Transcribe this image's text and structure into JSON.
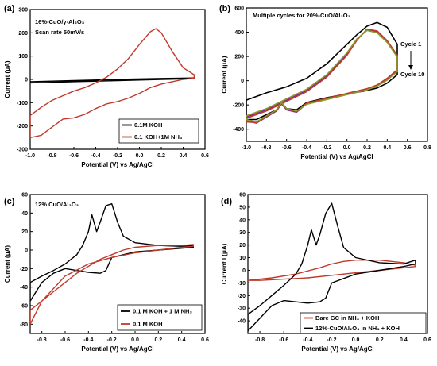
{
  "chart_data": [
    {
      "type": "line",
      "panel_label": "(a)",
      "annotations": [
        "16%-CuO/γ-Al₂O₃",
        "Scan rate 50mV/s"
      ],
      "xlabel": "Potential (V) vs Ag/AgCl",
      "ylabel": "Current (μA)",
      "xlim": [
        -1.0,
        0.6
      ],
      "ylim": [
        -300,
        300
      ],
      "xticks": [
        "-1.0",
        "-0.8",
        "-0.6",
        "-0.4",
        "-0.2",
        "0.0",
        "0.2",
        "0.4",
        "0.6"
      ],
      "yticks": [
        "-300",
        "-200",
        "-100",
        "0",
        "100",
        "200",
        "300"
      ],
      "legend_position": "bottom-right",
      "series": [
        {
          "name": "0.1M KOH",
          "color": "#000000",
          "x": [
            -1.0,
            -0.6,
            -0.2,
            0.2,
            0.5,
            0.5,
            0.2,
            -0.2,
            -0.6,
            -1.0
          ],
          "y": [
            -15,
            -10,
            -5,
            0,
            3,
            6,
            4,
            0,
            -5,
            -10
          ]
        },
        {
          "name": "0.1 KOH+1M NH₃",
          "color": "#c0392b",
          "x": [
            -1.0,
            -0.9,
            -0.8,
            -0.7,
            -0.6,
            -0.5,
            -0.4,
            -0.3,
            -0.2,
            -0.1,
            0.0,
            0.1,
            0.15,
            0.2,
            0.3,
            0.4,
            0.5,
            0.5,
            0.4,
            0.3,
            0.2,
            0.1,
            0.0,
            -0.1,
            -0.2,
            -0.3,
            -0.4,
            -0.5,
            -0.6,
            -0.7,
            -0.8,
            -0.9,
            -1.0
          ],
          "y": [
            -155,
            -120,
            -90,
            -70,
            -50,
            -35,
            -15,
            10,
            45,
            90,
            150,
            205,
            218,
            200,
            120,
            50,
            20,
            5,
            0,
            -10,
            -20,
            -35,
            -60,
            -80,
            -95,
            -105,
            -125,
            -150,
            -165,
            -170,
            -205,
            -240,
            -250
          ]
        }
      ]
    },
    {
      "type": "line",
      "panel_label": "(b)",
      "annotations": [
        "Multiple cycles for 20%-CuO/Al₂O₃",
        "Cycle 1",
        "Cycle 10"
      ],
      "xlabel": "Potential (V) vs Ag/AgCl",
      "ylabel": "Current (μA)",
      "xlim": [
        -1.0,
        0.8
      ],
      "ylim": [
        -500,
        600
      ],
      "xticks": [
        "-1.0",
        "-0.8",
        "-0.6",
        "-0.4",
        "-0.2",
        "0.0",
        "0.2",
        "0.4",
        "0.6",
        "0.8"
      ],
      "yticks": [
        "-400",
        "-200",
        "0",
        "200",
        "400",
        "600"
      ],
      "series": [
        {
          "name": "",
          "color": "#000000",
          "x": [
            -1.0,
            -0.8,
            -0.6,
            -0.4,
            -0.2,
            0.0,
            0.1,
            0.2,
            0.3,
            0.4,
            0.5,
            0.5,
            0.4,
            0.3,
            0.2,
            0.0,
            -0.2,
            -0.4,
            -0.5,
            -0.6,
            -0.65,
            -0.7,
            -0.8,
            -0.9,
            -1.0
          ],
          "y": [
            -160,
            -100,
            -50,
            20,
            140,
            300,
            380,
            450,
            480,
            440,
            300,
            50,
            -20,
            -60,
            -80,
            -110,
            -140,
            -180,
            -240,
            -230,
            -180,
            -240,
            -280,
            -320,
            -320
          ]
        },
        {
          "name": "",
          "color": "#7b2d8e",
          "x": [
            -1.0,
            -0.8,
            -0.6,
            -0.4,
            -0.2,
            0.0,
            0.1,
            0.2,
            0.3,
            0.4,
            0.5,
            0.5,
            0.4,
            0.3,
            0.2,
            0.0,
            -0.2,
            -0.4,
            -0.5,
            -0.6,
            -0.65,
            -0.7,
            -0.8,
            -0.9,
            -1.0
          ],
          "y": [
            -300,
            -240,
            -160,
            -80,
            40,
            220,
            340,
            420,
            400,
            320,
            200,
            80,
            10,
            -40,
            -70,
            -110,
            -150,
            -190,
            -260,
            -240,
            -190,
            -250,
            -300,
            -350,
            -330
          ]
        },
        {
          "name": "",
          "color": "#c0392b",
          "x": [
            -1.0,
            -0.8,
            -0.6,
            -0.4,
            -0.2,
            0.0,
            0.1,
            0.2,
            0.3,
            0.4,
            0.5,
            0.5,
            0.4,
            0.3,
            0.2,
            0.0,
            -0.2,
            -0.4,
            -0.5,
            -0.6,
            -0.65,
            -0.7,
            -0.8,
            -0.9,
            -1.0
          ],
          "y": [
            -310,
            -250,
            -170,
            -90,
            30,
            210,
            335,
            425,
            410,
            330,
            210,
            90,
            20,
            -35,
            -65,
            -105,
            -145,
            -185,
            -255,
            -235,
            -185,
            -245,
            -295,
            -345,
            -340
          ]
        },
        {
          "name": "",
          "color": "#8a9a2b",
          "x": [
            -1.0,
            -0.8,
            -0.6,
            -0.4,
            -0.2,
            0.0,
            0.1,
            0.2,
            0.3,
            0.4,
            0.5,
            0.5,
            0.4,
            0.3,
            0.2,
            0.0,
            -0.2,
            -0.4,
            -0.5,
            -0.6,
            -0.65,
            -0.7,
            -0.8,
            -0.9,
            -1.0
          ],
          "y": [
            -290,
            -230,
            -150,
            -70,
            50,
            230,
            345,
            415,
            395,
            315,
            195,
            75,
            5,
            -45,
            -75,
            -115,
            -155,
            -195,
            -250,
            -230,
            -180,
            -240,
            -290,
            -340,
            -320
          ]
        }
      ]
    },
    {
      "type": "line",
      "panel_label": "(c)",
      "annotations": [
        "12% CuO/Al₂O₃"
      ],
      "xlabel": "Potential (V) vs Ag/AgCl",
      "ylabel": "Current (μA)",
      "xlim": [
        -0.9,
        0.6
      ],
      "ylim": [
        -90,
        60
      ],
      "xticks": [
        "-0.8",
        "-0.6",
        "-0.4",
        "-0.2",
        "0.0",
        "0.2",
        "0.4",
        "0.6"
      ],
      "yticks": [
        "-80",
        "-60",
        "-40",
        "-20",
        "0",
        "20",
        "40",
        "60"
      ],
      "legend_position": "bottom-right",
      "series": [
        {
          "name": "0.1 M KOH + 1 M NH₃",
          "color": "#000000",
          "x": [
            -0.9,
            -0.8,
            -0.7,
            -0.6,
            -0.5,
            -0.45,
            -0.4,
            -0.37,
            -0.33,
            -0.3,
            -0.25,
            -0.2,
            -0.15,
            -0.1,
            0.0,
            0.2,
            0.4,
            0.5,
            0.5,
            0.4,
            0.2,
            0.0,
            -0.2,
            -0.25,
            -0.3,
            -0.4,
            -0.5,
            -0.6,
            -0.7,
            -0.8,
            -0.9
          ],
          "y": [
            -35,
            -28,
            -22,
            -15,
            -5,
            5,
            20,
            38,
            20,
            30,
            48,
            50,
            30,
            15,
            8,
            5,
            4,
            5,
            3,
            2,
            0,
            -2,
            -8,
            -22,
            -25,
            -24,
            -22,
            -20,
            -25,
            -35,
            -55
          ]
        },
        {
          "name": "0.1 M KOH",
          "color": "#c0392b",
          "x": [
            -0.9,
            -0.7,
            -0.5,
            -0.3,
            -0.2,
            -0.1,
            0.0,
            0.2,
            0.4,
            0.5,
            0.5,
            0.4,
            0.2,
            0.0,
            -0.2,
            -0.4,
            -0.6,
            -0.8,
            -0.9
          ],
          "y": [
            -65,
            -45,
            -25,
            -10,
            -5,
            0,
            3,
            5,
            5,
            6,
            4,
            3,
            0,
            -3,
            -8,
            -15,
            -28,
            -55,
            -80
          ]
        }
      ]
    },
    {
      "type": "line",
      "panel_label": "(d)",
      "xlabel": "Potential (V) vs Ag/AgCl",
      "ylabel": "Current I (μA)",
      "xlim": [
        -0.9,
        0.6
      ],
      "ylim": [
        -50,
        60
      ],
      "xticks": [
        "-0.8",
        "-0.6",
        "-0.4",
        "-0.2",
        "0.0",
        "0.2",
        "0.4",
        "0.6"
      ],
      "yticks": [
        "-40",
        "-30",
        "-20",
        "-10",
        "0",
        "10",
        "20",
        "30",
        "40",
        "50",
        "60"
      ],
      "legend_position": "bottom-right",
      "series": [
        {
          "name": "Bare GC in NH₃ + KOH",
          "color": "#c0392b",
          "x": [
            -0.9,
            -0.7,
            -0.5,
            -0.3,
            -0.2,
            -0.1,
            0.0,
            0.2,
            0.4,
            0.5,
            0.5,
            0.4,
            0.2,
            0.0,
            -0.2,
            -0.4,
            -0.6,
            -0.8,
            -0.9
          ],
          "y": [
            -8,
            -6,
            -3,
            2,
            5,
            7,
            8,
            8,
            6,
            4,
            3,
            2,
            0,
            -2,
            -4,
            -6,
            -7,
            -8,
            -8
          ]
        },
        {
          "name": "12%-CuO/Al₂O₃ in NH₃ + KOH",
          "color": "#000000",
          "x": [
            -0.9,
            -0.8,
            -0.7,
            -0.6,
            -0.5,
            -0.45,
            -0.4,
            -0.37,
            -0.33,
            -0.3,
            -0.25,
            -0.2,
            -0.15,
            -0.1,
            0.0,
            0.2,
            0.4,
            0.5,
            0.5,
            0.4,
            0.2,
            0.0,
            -0.2,
            -0.25,
            -0.3,
            -0.4,
            -0.5,
            -0.6,
            -0.7,
            -0.8,
            -0.9
          ],
          "y": [
            -35,
            -28,
            -20,
            -12,
            -3,
            5,
            20,
            32,
            20,
            28,
            45,
            53,
            35,
            18,
            10,
            6,
            5,
            8,
            5,
            3,
            0,
            -3,
            -10,
            -22,
            -25,
            -26,
            -25,
            -24,
            -28,
            -38,
            -48
          ]
        }
      ]
    }
  ]
}
